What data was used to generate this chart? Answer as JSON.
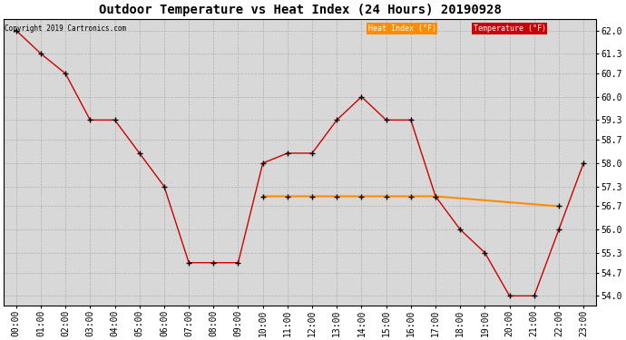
{
  "title": "Outdoor Temperature vs Heat Index (24 Hours) 20190928",
  "copyright": "Copyright 2019 Cartronics.com",
  "x_labels": [
    "00:00",
    "01:00",
    "02:00",
    "03:00",
    "04:00",
    "05:00",
    "06:00",
    "07:00",
    "08:00",
    "09:00",
    "10:00",
    "11:00",
    "12:00",
    "13:00",
    "14:00",
    "15:00",
    "16:00",
    "17:00",
    "18:00",
    "19:00",
    "20:00",
    "21:00",
    "22:00",
    "23:00"
  ],
  "temperature": [
    62.0,
    61.3,
    60.7,
    59.3,
    59.3,
    58.3,
    57.3,
    55.0,
    55.0,
    55.0,
    58.0,
    58.3,
    58.3,
    59.3,
    60.0,
    59.3,
    59.3,
    57.0,
    56.0,
    55.3,
    54.0,
    54.0,
    56.0,
    58.0
  ],
  "heat_index": [
    null,
    null,
    null,
    null,
    null,
    null,
    null,
    null,
    null,
    null,
    57.0,
    57.0,
    57.0,
    57.0,
    57.0,
    57.0,
    57.0,
    57.0,
    null,
    null,
    null,
    null,
    56.7,
    null
  ],
  "temp_color": "#cc0000",
  "heat_color": "#ff8c00",
  "ylim_min": 53.7,
  "ylim_max": 62.35,
  "yticks": [
    54.0,
    54.7,
    55.3,
    56.0,
    56.7,
    57.3,
    58.0,
    58.7,
    59.3,
    60.0,
    60.7,
    61.3,
    62.0
  ],
  "plot_bg_color": "#d8d8d8",
  "fig_bg_color": "#ffffff",
  "grid_color": "#b0b0b0",
  "title_fontsize": 10,
  "tick_fontsize": 7,
  "legend_heat_bg": "#ff8c00",
  "legend_temp_bg": "#cc0000",
  "legend_text_color": "#ffffff"
}
